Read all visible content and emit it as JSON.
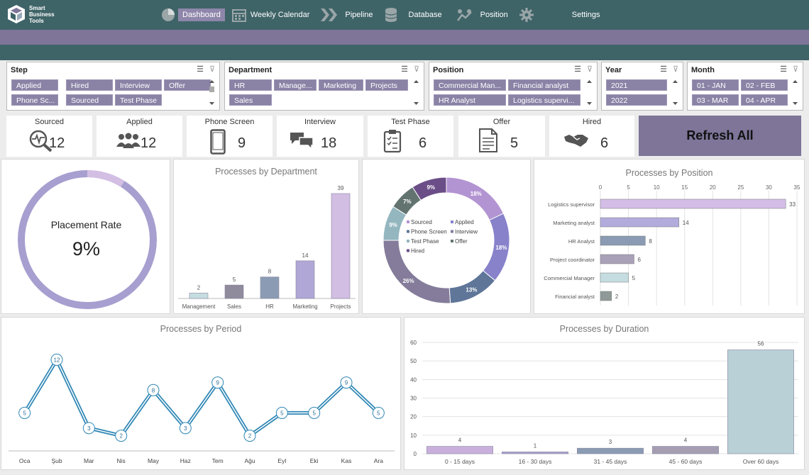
{
  "app": {
    "logo_text_1": "Smart",
    "logo_text_2": "Business",
    "logo_text_3": "Tools"
  },
  "nav": [
    {
      "label": "Dashboard",
      "icon": "pie-chart-icon",
      "active": true
    },
    {
      "label": "Weekly Calendar",
      "icon": "calendar-icon",
      "active": false
    },
    {
      "label": "Pipeline",
      "icon": "chevrons-icon",
      "active": false
    },
    {
      "label": "Database",
      "icon": "database-icon",
      "active": false
    },
    {
      "label": "Position",
      "icon": "people-chart-icon",
      "active": false
    },
    {
      "label": "Settings",
      "icon": "gear-icon",
      "active": false
    }
  ],
  "slicers": {
    "step": {
      "title": "Step",
      "items": [
        "Applied",
        "Hired",
        "Interview",
        "Offer",
        "Phone Sc...",
        "Sourced",
        "Test Phase"
      ]
    },
    "department": {
      "title": "Department",
      "items": [
        "HR",
        "Manage...",
        "Marketing",
        "Projects",
        "Sales"
      ]
    },
    "position": {
      "title": "Position",
      "items": [
        "Commercial Man...",
        "Financial analyst",
        "HR Analyst",
        "Logistics supervi..."
      ]
    },
    "year": {
      "title": "Year",
      "items": [
        "2021",
        "2022"
      ]
    },
    "month": {
      "title": "Month",
      "items": [
        "01 - JAN",
        "02 - FEB",
        "03 - MAR",
        "04 - APR"
      ]
    }
  },
  "kpis": [
    {
      "label": "Sourced",
      "value": "12",
      "icon": "magnifier-pulse-icon"
    },
    {
      "label": "Applied",
      "value": "12",
      "icon": "group-icon"
    },
    {
      "label": "Phone Screen",
      "value": "9",
      "icon": "phone-icon"
    },
    {
      "label": "Interview",
      "value": "18",
      "icon": "chat-bubbles-icon"
    },
    {
      "label": "Test Phase",
      "value": "6",
      "icon": "clipboard-icon"
    },
    {
      "label": "Offer",
      "value": "5",
      "icon": "document-icon"
    },
    {
      "label": "Hired",
      "value": "6",
      "icon": "handshake-icon"
    }
  ],
  "refresh_label": "Refresh All",
  "placement": {
    "label": "Placement Rate",
    "value": "9%",
    "fraction": 0.09
  },
  "colors": {
    "teal": "#3f6468",
    "purple": "#7e7599",
    "light_purple": "#c8b6dc",
    "line_blue": "#2f87b5"
  },
  "chart_data": [
    {
      "type": "bar",
      "title": "Processes by Department",
      "categories": [
        "Management",
        "Sales",
        "HR",
        "Marketing",
        "Projects"
      ],
      "values": [
        2,
        5,
        8,
        14,
        39
      ],
      "colors": [
        "#c5dde0",
        "#8f8a9c",
        "#8a9bb3",
        "#b0a7d6",
        "#d2bde3"
      ]
    },
    {
      "type": "pie",
      "title": "",
      "categories": [
        "Sourced",
        "Applied",
        "Phone Screen",
        "Interview",
        "Test Phase",
        "Offer",
        "Hired"
      ],
      "values": [
        18,
        18,
        13,
        26,
        9,
        7,
        9
      ],
      "labels": [
        "18%",
        "18%",
        "13%",
        "26%",
        "9%",
        "7%",
        "9%"
      ],
      "colors": [
        "#b394d2",
        "#8882cb",
        "#5f7699",
        "#847c9a",
        "#93b6bf",
        "#627370",
        "#6b4d88"
      ],
      "legend": "center"
    },
    {
      "type": "bar",
      "orientation": "horizontal",
      "title": "Processes by Position",
      "categories": [
        "Logistics supervisor",
        "Marketing analyst",
        "HR Analyst",
        "Project coordinator",
        "Commercial Manager",
        "Financial analyst"
      ],
      "values": [
        33,
        14,
        8,
        6,
        5,
        2
      ],
      "xlim": [
        0,
        35
      ],
      "ticks": [
        0,
        5,
        10,
        15,
        20,
        25,
        30,
        35
      ],
      "colors": [
        "#d4bde6",
        "#b2acdd",
        "#8a9bb3",
        "#a9a1b8",
        "#c5dde0",
        "#8f9a98"
      ]
    },
    {
      "type": "line",
      "title": "Processes by Period",
      "categories": [
        "Oca",
        "Şub",
        "Mar",
        "Nis",
        "May",
        "Haz",
        "Tem",
        "Ağu",
        "Eyl",
        "Eki",
        "Kas",
        "Ara"
      ],
      "values": [
        5,
        12,
        3,
        2,
        8,
        3,
        9,
        2,
        5,
        5,
        9,
        5
      ],
      "ylim": [
        0,
        14
      ]
    },
    {
      "type": "bar",
      "title": "Processes by Duration",
      "categories": [
        "0 - 15 days",
        "16 - 30 days",
        "31 - 45 days",
        "45 - 60 days",
        "Over 60 days"
      ],
      "values": [
        4,
        1,
        3,
        4,
        56
      ],
      "ylim": [
        0,
        60
      ],
      "ticks": [
        0,
        10,
        20,
        30,
        40,
        50,
        60
      ],
      "colors": [
        "#c9b0dc",
        "#a8a3d0",
        "#8a9bb3",
        "#a59eb3",
        "#b9d0d6"
      ]
    }
  ]
}
